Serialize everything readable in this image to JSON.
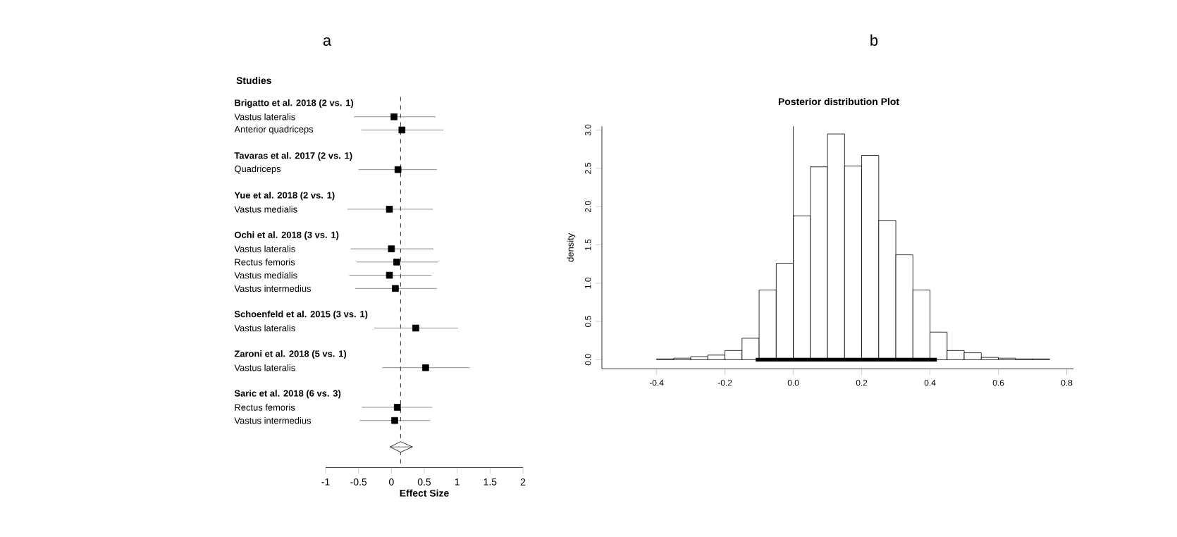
{
  "chart_data": [
    {
      "type": "scatter",
      "orientation": "horizontal",
      "title": "a",
      "xlabel": "Effect Size",
      "annotations": [
        "Studies"
      ],
      "categories": [
        "Brigatto et al. 2018 (2 vs. 1)",
        "Vastus lateralis",
        "Anterior quadriceps",
        null,
        "Tavaras et al. 2017 (2 vs. 1)",
        "Quadriceps",
        null,
        "Yue et al. 2018 (2 vs. 1)",
        "Vastus medialis",
        null,
        "Ochi et al. 2018 (3 vs. 1)",
        "Vastus lateralis",
        "Rectus femoris",
        "Vastus medialis",
        "Vastus intermedius",
        null,
        "Schoenfeld et al. 2015 (3 vs. 1)",
        "Vastus lateralis",
        null,
        "Zaroni et al. 2018 (5 vs. 1)",
        "Vastus lateralis",
        null,
        "Saric et al. 2018 (6 vs. 3)",
        "Rectus femoris",
        "Vastus intermedius",
        null,
        null
      ],
      "series": [
        {
          "color": "#000000",
          "marker": "square",
          "values": [
            null,
            0.04,
            0.16,
            null,
            null,
            0.1,
            null,
            null,
            -0.03,
            null,
            null,
            0.0,
            0.08,
            -0.03,
            0.06,
            null,
            null,
            0.37,
            null,
            null,
            0.52,
            null,
            null,
            0.09,
            0.05,
            null,
            null
          ],
          "errors": [
            null,
            [
              -0.57,
              0.67
            ],
            [
              -0.46,
              0.79
            ],
            null,
            null,
            [
              -0.5,
              0.69
            ],
            null,
            null,
            [
              -0.67,
              0.63
            ],
            null,
            null,
            [
              -0.62,
              0.64
            ],
            [
              -0.53,
              0.71
            ],
            [
              -0.64,
              0.61
            ],
            [
              -0.55,
              0.69
            ],
            null,
            null,
            [
              -0.26,
              1.01
            ],
            null,
            null,
            [
              -0.14,
              1.19
            ],
            null,
            null,
            [
              -0.45,
              0.62
            ],
            [
              -0.48,
              0.59
            ],
            null,
            null
          ]
        },
        {
          "color": "#000000",
          "marker": "diamond",
          "values": [
            null,
            null,
            null,
            null,
            null,
            null,
            null,
            null,
            null,
            null,
            null,
            null,
            null,
            null,
            null,
            null,
            null,
            null,
            null,
            null,
            null,
            null,
            null,
            null,
            null,
            null,
            0.14
          ],
          "errors": [
            null,
            null,
            null,
            null,
            null,
            null,
            null,
            null,
            null,
            null,
            null,
            null,
            null,
            null,
            null,
            null,
            null,
            null,
            null,
            null,
            null,
            null,
            null,
            null,
            null,
            null,
            [
              -0.02,
              0.32
            ]
          ]
        }
      ],
      "xlim": [
        -1,
        2
      ],
      "xticks": [
        -1,
        -0.5,
        0,
        0.5,
        1,
        1.5,
        2
      ],
      "ref_lines": [
        {
          "axis": "x",
          "value": 0.14,
          "line_style": "dashed"
        }
      ]
    },
    {
      "type": "histogram",
      "title": "b",
      "subtitle": "Posterior distribution Plot",
      "ylabel": "density",
      "color": "#ffffff",
      "bins": [
        -0.4,
        -0.35,
        -0.3,
        -0.25,
        -0.2,
        -0.15,
        -0.1,
        -0.05,
        0,
        0.05,
        0.1,
        0.15,
        0.2,
        0.25,
        0.3,
        0.35,
        0.4,
        0.45,
        0.5,
        0.55,
        0.6,
        0.65,
        0.7,
        0.75
      ],
      "values": [
        0.01,
        0.02,
        0.04,
        0.06,
        0.12,
        0.28,
        0.91,
        1.26,
        1.88,
        2.52,
        2.95,
        2.53,
        2.67,
        1.82,
        1.37,
        0.91,
        0.36,
        0.12,
        0.09,
        0.03,
        0.02,
        0.01,
        0.01
      ],
      "xlim": [
        -0.56,
        0.82
      ],
      "ylim": [
        -0.12,
        3.05
      ],
      "xticks": [
        -0.4,
        -0.2,
        {
          "value": 0,
          "label": "0.0"
        },
        0.2,
        0.4,
        0.6,
        0.8
      ],
      "yticks": [
        {
          "value": 0,
          "label": "0.0"
        },
        0.5,
        {
          "value": 1,
          "label": "1.0"
        },
        1.5,
        {
          "value": 2,
          "label": "2.0"
        },
        2.5,
        {
          "value": 3,
          "label": "3.0"
        }
      ],
      "ref_lines": [
        {
          "axis": "x",
          "value": 0,
          "color": "#000000",
          "line_style": "solid"
        }
      ],
      "series": [
        {
          "type": "line",
          "x": [
            -0.11,
            0.42
          ],
          "values": [
            0,
            0
          ],
          "color": "#000000"
        }
      ]
    }
  ]
}
